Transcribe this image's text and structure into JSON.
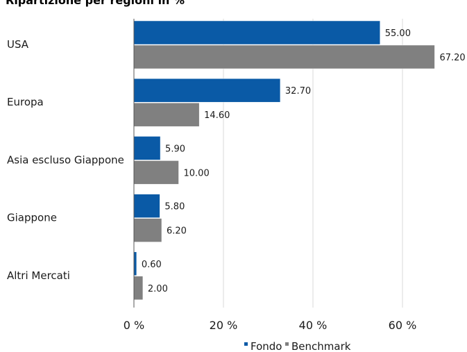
{
  "chart_data": {
    "type": "bar",
    "orientation": "horizontal",
    "title": "Ripartizione per regioni in %",
    "categories": [
      "USA",
      "Europa",
      "Asia escluso Giappone",
      "Giappone",
      "Altri Mercati"
    ],
    "series": [
      {
        "name": "Fondo",
        "color": "#0a5aa6",
        "values": [
          55.0,
          32.7,
          5.9,
          5.8,
          0.6
        ],
        "labels": [
          "55.00",
          "32.70",
          "5.90",
          "5.80",
          "0.60"
        ]
      },
      {
        "name": "Benchmark",
        "color": "#808080",
        "values": [
          67.2,
          14.6,
          10.0,
          6.2,
          2.0
        ],
        "labels": [
          "67.20",
          "14.60",
          "10.00",
          "6.20",
          "2.00"
        ]
      }
    ],
    "xlim": [
      0,
      70
    ],
    "xticks": [
      0,
      20,
      40,
      60
    ],
    "xtick_labels": [
      "0 %",
      "20 %",
      "40 %",
      "60 %"
    ],
    "grid": true,
    "legend_position": "bottom"
  }
}
